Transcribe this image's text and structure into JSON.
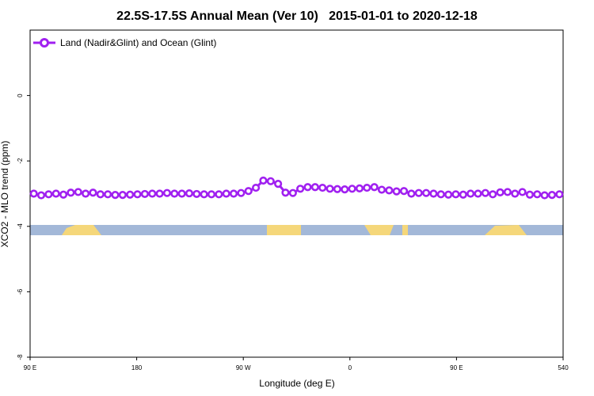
{
  "chart_data": {
    "type": "line",
    "title": "22.5S-17.5S Annual Mean (Ver 10)   2015-01-01 to 2020-12-18",
    "xlabel": "Longitude (deg E)",
    "ylabel": "XCO2 - MLO trend (ppm)",
    "xlim": [
      90,
      540
    ],
    "ylim": [
      -8,
      2
    ],
    "xticks": [
      {
        "value": 90,
        "label": "90 E"
      },
      180,
      {
        "value": 270,
        "label": "90 W"
      },
      {
        "value": 360,
        "label": "0"
      },
      {
        "value": 450,
        "label": "90 E"
      },
      540
    ],
    "yticks": [
      -8,
      -6,
      -4,
      -2,
      0
    ],
    "legend": "upper left",
    "x": [
      93.125,
      99.375,
      105.625,
      111.875,
      118.125,
      124.375,
      130.625,
      136.875,
      143.125,
      149.375,
      155.625,
      161.875,
      168.125,
      174.375,
      180.625,
      186.875,
      193.125,
      199.375,
      205.625,
      211.875,
      218.125,
      224.375,
      230.625,
      236.875,
      243.125,
      249.375,
      255.625,
      261.875,
      268.125,
      274.375,
      280.625,
      286.875,
      293.125,
      299.375,
      305.625,
      311.875,
      318.125,
      324.375,
      330.625,
      336.875,
      343.125,
      349.375,
      355.625,
      361.875,
      368.125,
      374.375,
      380.625,
      386.875,
      393.125,
      399.375,
      405.625,
      411.875,
      418.125,
      424.375,
      430.625,
      436.875,
      443.125,
      449.375,
      455.625,
      461.875,
      468.125,
      474.375,
      480.625,
      486.875,
      493.125,
      499.375,
      505.625,
      511.875,
      518.125,
      524.375,
      530.625,
      536.875
    ],
    "series": [
      {
        "name": "Land (Nadir&Glint) and Ocean (Glint)",
        "color": "#a020f0",
        "values": [
          -3.0,
          -3.05,
          -3.02,
          -3.0,
          -3.03,
          -2.97,
          -2.95,
          -3.0,
          -2.97,
          -3.02,
          -3.02,
          -3.04,
          -3.04,
          -3.03,
          -3.02,
          -3.01,
          -3.0,
          -3.0,
          -2.98,
          -3.0,
          -3.0,
          -2.99,
          -3.01,
          -3.02,
          -3.02,
          -3.02,
          -3.0,
          -3.0,
          -2.98,
          -2.92,
          -2.82,
          -2.6,
          -2.62,
          -2.7,
          -2.97,
          -2.98,
          -2.85,
          -2.8,
          -2.8,
          -2.82,
          -2.85,
          -2.86,
          -2.87,
          -2.85,
          -2.84,
          -2.82,
          -2.8,
          -2.88,
          -2.9,
          -2.93,
          -2.92,
          -3.0,
          -2.98,
          -2.98,
          -3.0,
          -3.02,
          -3.03,
          -3.02,
          -3.03,
          -3.0,
          -3.0,
          -2.98,
          -3.02,
          -2.96,
          -2.95,
          -3.0,
          -2.95,
          -3.03,
          -3.02,
          -3.05,
          -3.04,
          -3.02
        ]
      }
    ]
  }
}
